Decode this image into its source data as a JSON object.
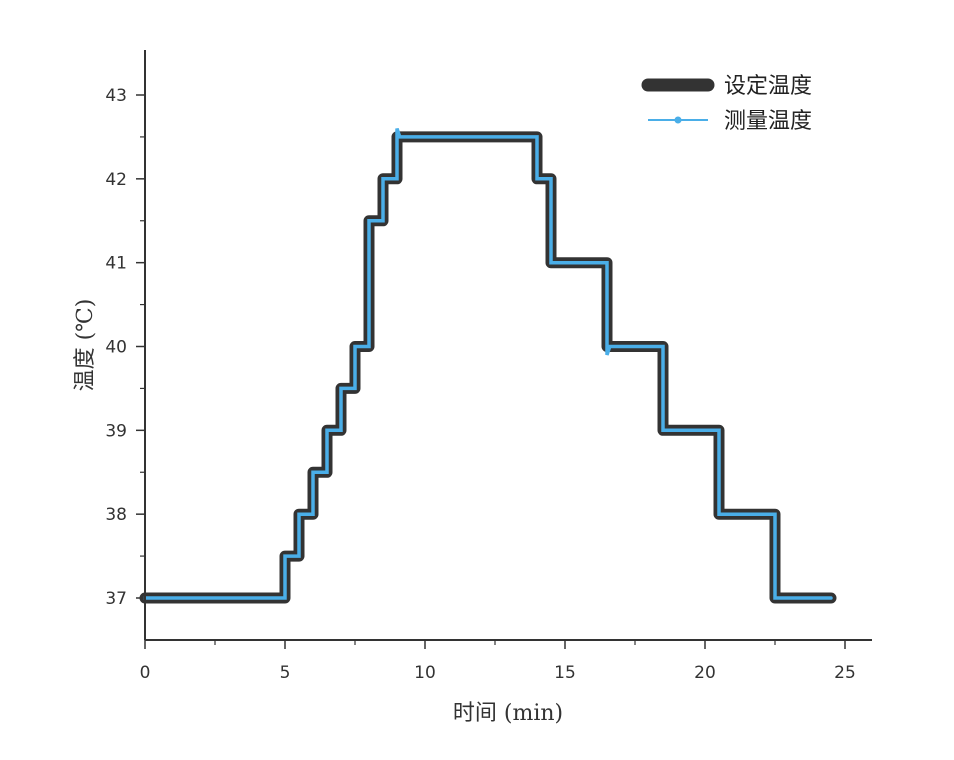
{
  "chart_data": {
    "type": "line",
    "title": "",
    "xlabel": "时间 (min)",
    "ylabel": "温度 (℃)",
    "xlim": [
      0,
      26
    ],
    "ylim": [
      36.5,
      43.5
    ],
    "xticks": [
      "0",
      "5",
      "10",
      "15",
      "20",
      "25"
    ],
    "yticks": [
      "37",
      "38",
      "39",
      "40",
      "41",
      "42",
      "43"
    ],
    "grid": false,
    "legend_position": "top-right",
    "series": [
      {
        "name": "设定温度",
        "color": "#333333",
        "style": "thick-step",
        "points": [
          [
            0,
            37
          ],
          [
            5,
            37
          ],
          [
            5,
            37.5
          ],
          [
            5.5,
            37.5
          ],
          [
            5.5,
            38
          ],
          [
            6,
            38
          ],
          [
            6,
            38.5
          ],
          [
            6.5,
            38.5
          ],
          [
            6.5,
            39
          ],
          [
            7,
            39
          ],
          [
            7,
            39.5
          ],
          [
            7.5,
            39.5
          ],
          [
            7.5,
            40
          ],
          [
            8,
            40
          ],
          [
            8,
            41.5
          ],
          [
            8.5,
            41.5
          ],
          [
            8.5,
            42
          ],
          [
            9,
            42
          ],
          [
            9,
            42.5
          ],
          [
            14,
            42.5
          ],
          [
            14,
            42
          ],
          [
            14.5,
            42
          ],
          [
            14.5,
            41
          ],
          [
            16.5,
            41
          ],
          [
            16.5,
            40
          ],
          [
            18.5,
            40
          ],
          [
            18.5,
            39
          ],
          [
            20.5,
            39
          ],
          [
            20.5,
            38
          ],
          [
            22.5,
            38
          ],
          [
            22.5,
            37
          ],
          [
            24.5,
            37
          ]
        ]
      },
      {
        "name": "测量温度",
        "color": "#4aaee8",
        "style": "thin-step",
        "points": [
          [
            0,
            37
          ],
          [
            5,
            37
          ],
          [
            5,
            37.5
          ],
          [
            5.5,
            37.5
          ],
          [
            5.5,
            38
          ],
          [
            6,
            38
          ],
          [
            6,
            38.5
          ],
          [
            6.5,
            38.5
          ],
          [
            6.5,
            39
          ],
          [
            7,
            39
          ],
          [
            7,
            39.5
          ],
          [
            7.5,
            39.5
          ],
          [
            7.5,
            40
          ],
          [
            8,
            40
          ],
          [
            8,
            41.5
          ],
          [
            8.5,
            41.5
          ],
          [
            8.5,
            42
          ],
          [
            9,
            42
          ],
          [
            9,
            42.6
          ],
          [
            9.1,
            42.5
          ],
          [
            14,
            42.5
          ],
          [
            14,
            42
          ],
          [
            14.5,
            42
          ],
          [
            14.5,
            41
          ],
          [
            16.5,
            41
          ],
          [
            16.5,
            39.9
          ],
          [
            16.6,
            40
          ],
          [
            18.5,
            40
          ],
          [
            18.5,
            39
          ],
          [
            20.5,
            39
          ],
          [
            20.5,
            38
          ],
          [
            22.5,
            38
          ],
          [
            22.5,
            37
          ],
          [
            24.5,
            37
          ]
        ]
      }
    ]
  }
}
